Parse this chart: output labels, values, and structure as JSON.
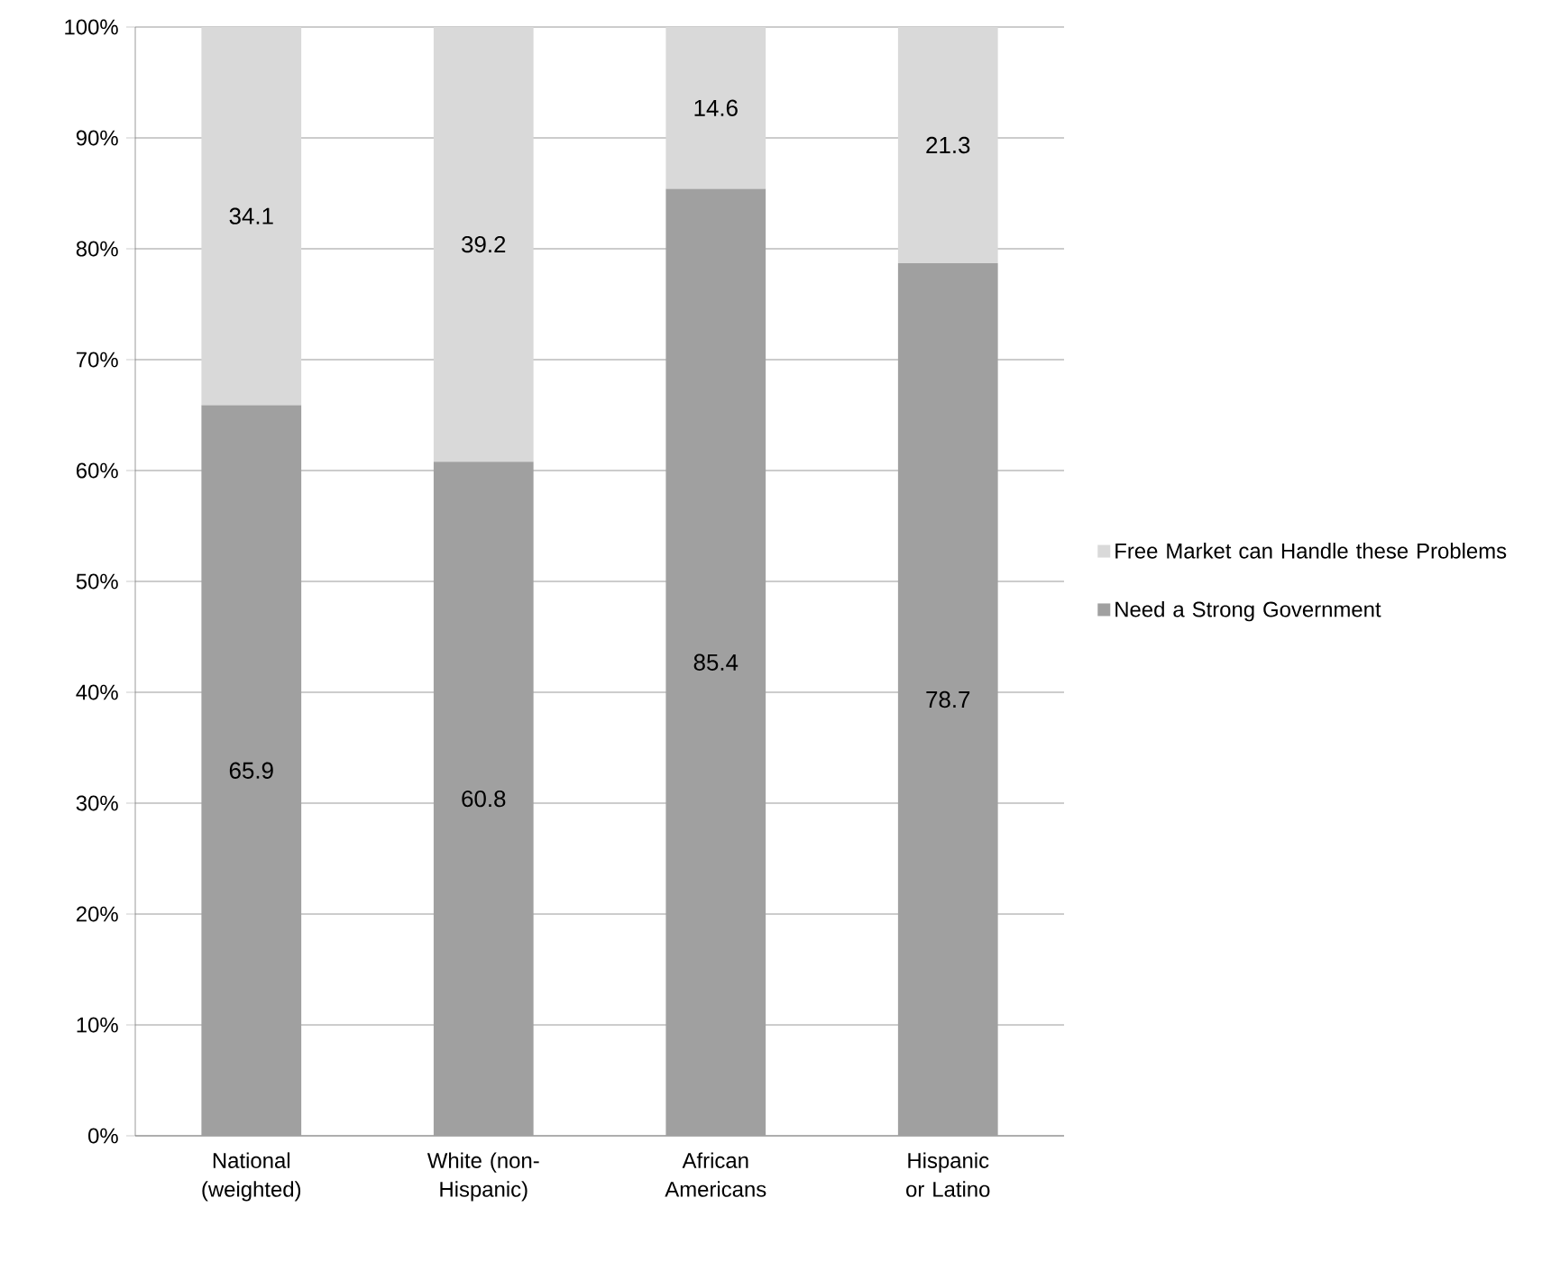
{
  "chart_data": {
    "type": "bar",
    "stacked": true,
    "categories": [
      "National (weighted)",
      "White (non-Hispanic)",
      "African Americans",
      "Hispanic or Latino"
    ],
    "series": [
      {
        "name": "Need a Strong Government",
        "color": "#a0a0a0",
        "values": [
          65.9,
          60.8,
          85.4,
          78.7
        ]
      },
      {
        "name": "Free Market can Handle these Problems",
        "color": "#d9d9d9",
        "values": [
          34.1,
          39.2,
          14.6,
          21.3
        ]
      }
    ],
    "ylim": [
      0,
      100
    ],
    "yticks": [
      {
        "value": 0,
        "label": "0%"
      },
      {
        "value": 10,
        "label": "10%"
      },
      {
        "value": 20,
        "label": "20%"
      },
      {
        "value": 30,
        "label": "30%"
      },
      {
        "value": 40,
        "label": "40%"
      },
      {
        "value": 50,
        "label": "50%"
      },
      {
        "value": 60,
        "label": "60%"
      },
      {
        "value": 70,
        "label": "70%"
      },
      {
        "value": 80,
        "label": "80%"
      },
      {
        "value": 90,
        "label": "90%"
      },
      {
        "value": 100,
        "label": "100%"
      }
    ],
    "grid": "y",
    "legend": "right",
    "data_labels": true
  }
}
